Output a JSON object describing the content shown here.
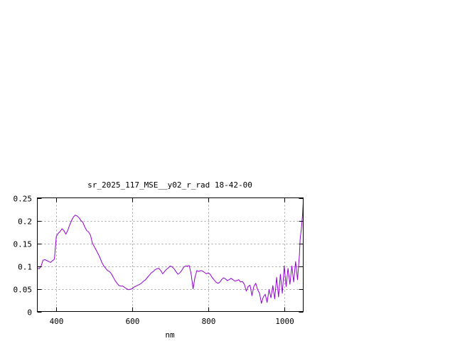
{
  "chart_data": {
    "type": "line",
    "title": "sr_2025_117_MSE__y02_r_rad 18-42-00",
    "xlabel": "nm",
    "ylabel": "",
    "xlim": [
      350,
      1050
    ],
    "ylim": [
      0,
      0.25
    ],
    "grid": true,
    "legend": "none",
    "x_ticks": [
      400,
      600,
      800,
      1000
    ],
    "x_tick_labels": [
      "400",
      "600",
      "800",
      "1000"
    ],
    "y_ticks": [
      0,
      0.05,
      0.1,
      0.15,
      0.2,
      0.25
    ],
    "y_tick_labels": [
      "0",
      "0.05",
      "0.1",
      "0.15",
      "0.2",
      "0.25"
    ],
    "series": [
      {
        "color": "#9400d3",
        "x": [
          350,
          355,
          360,
          365,
          370,
          375,
          380,
          385,
          390,
          395,
          400,
          405,
          410,
          415,
          420,
          425,
          430,
          435,
          440,
          445,
          450,
          455,
          460,
          465,
          470,
          475,
          480,
          485,
          490,
          495,
          500,
          505,
          510,
          515,
          520,
          525,
          530,
          535,
          540,
          545,
          550,
          555,
          560,
          565,
          570,
          575,
          580,
          585,
          590,
          595,
          600,
          605,
          610,
          615,
          620,
          625,
          630,
          635,
          640,
          645,
          650,
          655,
          660,
          665,
          670,
          675,
          680,
          685,
          690,
          695,
          700,
          705,
          710,
          715,
          720,
          725,
          730,
          735,
          740,
          745,
          750,
          755,
          760,
          765,
          770,
          775,
          780,
          785,
          790,
          795,
          800,
          805,
          810,
          815,
          820,
          825,
          830,
          835,
          840,
          845,
          850,
          855,
          860,
          865,
          870,
          875,
          880,
          885,
          890,
          895,
          900,
          905,
          910,
          915,
          920,
          925,
          930,
          935,
          940,
          945,
          950,
          955,
          960,
          965,
          970,
          975,
          980,
          985,
          990,
          995,
          1000,
          1005,
          1010,
          1015,
          1020,
          1025,
          1030,
          1035,
          1040,
          1042,
          1045,
          1048,
          1050
        ],
        "y": [
          0.095,
          0.094,
          0.1,
          0.113,
          0.114,
          0.112,
          0.11,
          0.108,
          0.112,
          0.115,
          0.165,
          0.172,
          0.176,
          0.182,
          0.178,
          0.17,
          0.178,
          0.19,
          0.2,
          0.208,
          0.212,
          0.21,
          0.206,
          0.2,
          0.196,
          0.186,
          0.178,
          0.175,
          0.168,
          0.15,
          0.143,
          0.135,
          0.127,
          0.118,
          0.108,
          0.1,
          0.095,
          0.09,
          0.088,
          0.083,
          0.075,
          0.068,
          0.062,
          0.057,
          0.056,
          0.056,
          0.053,
          0.05,
          0.048,
          0.049,
          0.05,
          0.054,
          0.056,
          0.058,
          0.06,
          0.063,
          0.067,
          0.07,
          0.075,
          0.08,
          0.085,
          0.088,
          0.092,
          0.094,
          0.095,
          0.09,
          0.083,
          0.088,
          0.093,
          0.096,
          0.1,
          0.098,
          0.094,
          0.088,
          0.082,
          0.085,
          0.09,
          0.097,
          0.1,
          0.1,
          0.101,
          0.082,
          0.05,
          0.075,
          0.09,
          0.088,
          0.09,
          0.089,
          0.086,
          0.083,
          0.085,
          0.082,
          0.075,
          0.07,
          0.065,
          0.062,
          0.064,
          0.07,
          0.074,
          0.072,
          0.068,
          0.07,
          0.073,
          0.07,
          0.067,
          0.068,
          0.07,
          0.065,
          0.066,
          0.06,
          0.045,
          0.055,
          0.058,
          0.035,
          0.055,
          0.062,
          0.048,
          0.04,
          0.018,
          0.032,
          0.038,
          0.02,
          0.048,
          0.03,
          0.057,
          0.028,
          0.075,
          0.032,
          0.082,
          0.04,
          0.1,
          0.055,
          0.095,
          0.06,
          0.1,
          0.065,
          0.11,
          0.07,
          0.125,
          0.16,
          0.18,
          0.21,
          0.24
        ]
      }
    ]
  }
}
